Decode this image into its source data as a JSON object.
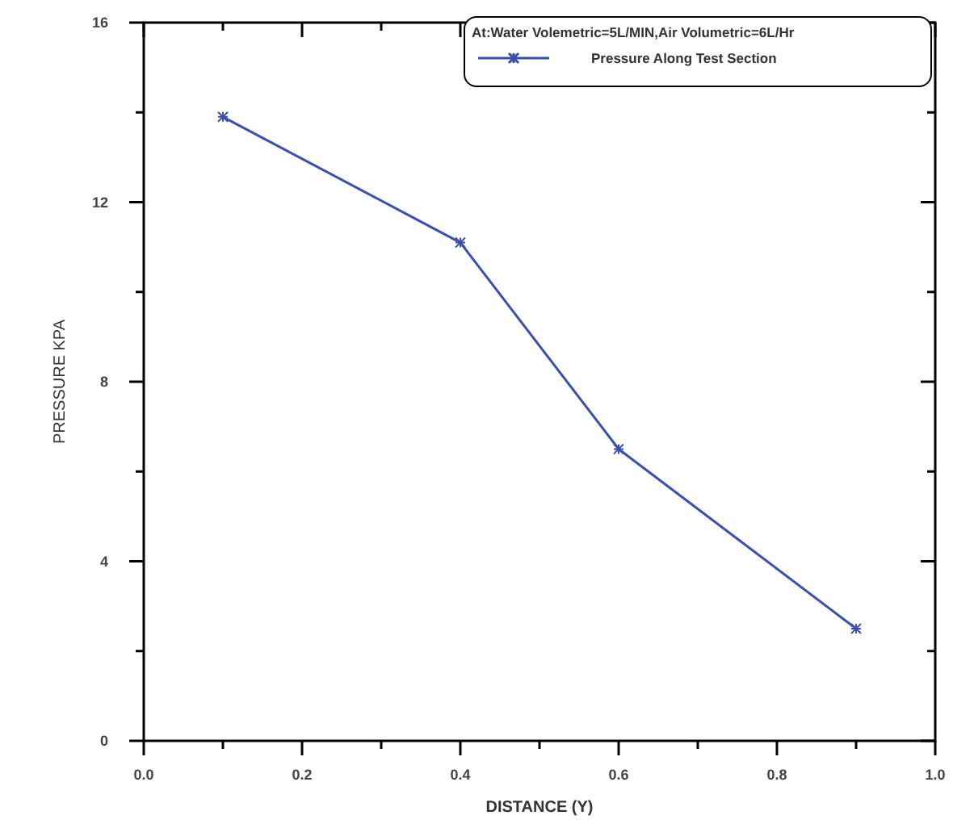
{
  "chart_data": {
    "type": "line",
    "legend_title": "At:Water Volemetric=5L/MIN,Air Volumetric=6L/Hr",
    "xlabel": "DISTANCE (Y)",
    "ylabel": "PRESSURE KPA",
    "x": [
      0.1,
      0.4,
      0.6,
      0.9
    ],
    "series": [
      {
        "name": "Pressure Along Test Section",
        "color": "#3a50b0",
        "values": [
          13.9,
          11.1,
          6.5,
          2.5
        ]
      }
    ],
    "xlim": [
      0,
      1
    ],
    "ylim": [
      0,
      16
    ],
    "xticks": [
      {
        "value": 0,
        "label": "0.0"
      },
      {
        "value": 0.1,
        "label": null
      },
      {
        "value": 0.2,
        "label": "0.2"
      },
      {
        "value": 0.3,
        "label": null
      },
      {
        "value": 0.4,
        "label": "0.4"
      },
      {
        "value": 0.5,
        "label": null
      },
      {
        "value": 0.6,
        "label": "0.6"
      },
      {
        "value": 0.7,
        "label": null
      },
      {
        "value": 0.8,
        "label": "0.8"
      },
      {
        "value": 0.9,
        "label": null
      },
      {
        "value": 1,
        "label": "1.0"
      }
    ],
    "yticks": [
      0,
      {
        "value": 2,
        "label": null
      },
      4,
      {
        "value": 6,
        "label": null
      },
      8,
      {
        "value": 10,
        "label": null
      },
      12,
      {
        "value": 14,
        "label": null
      },
      16
    ],
    "marker": "cross",
    "line_style": "solid",
    "grid": false,
    "legend": "top right"
  }
}
